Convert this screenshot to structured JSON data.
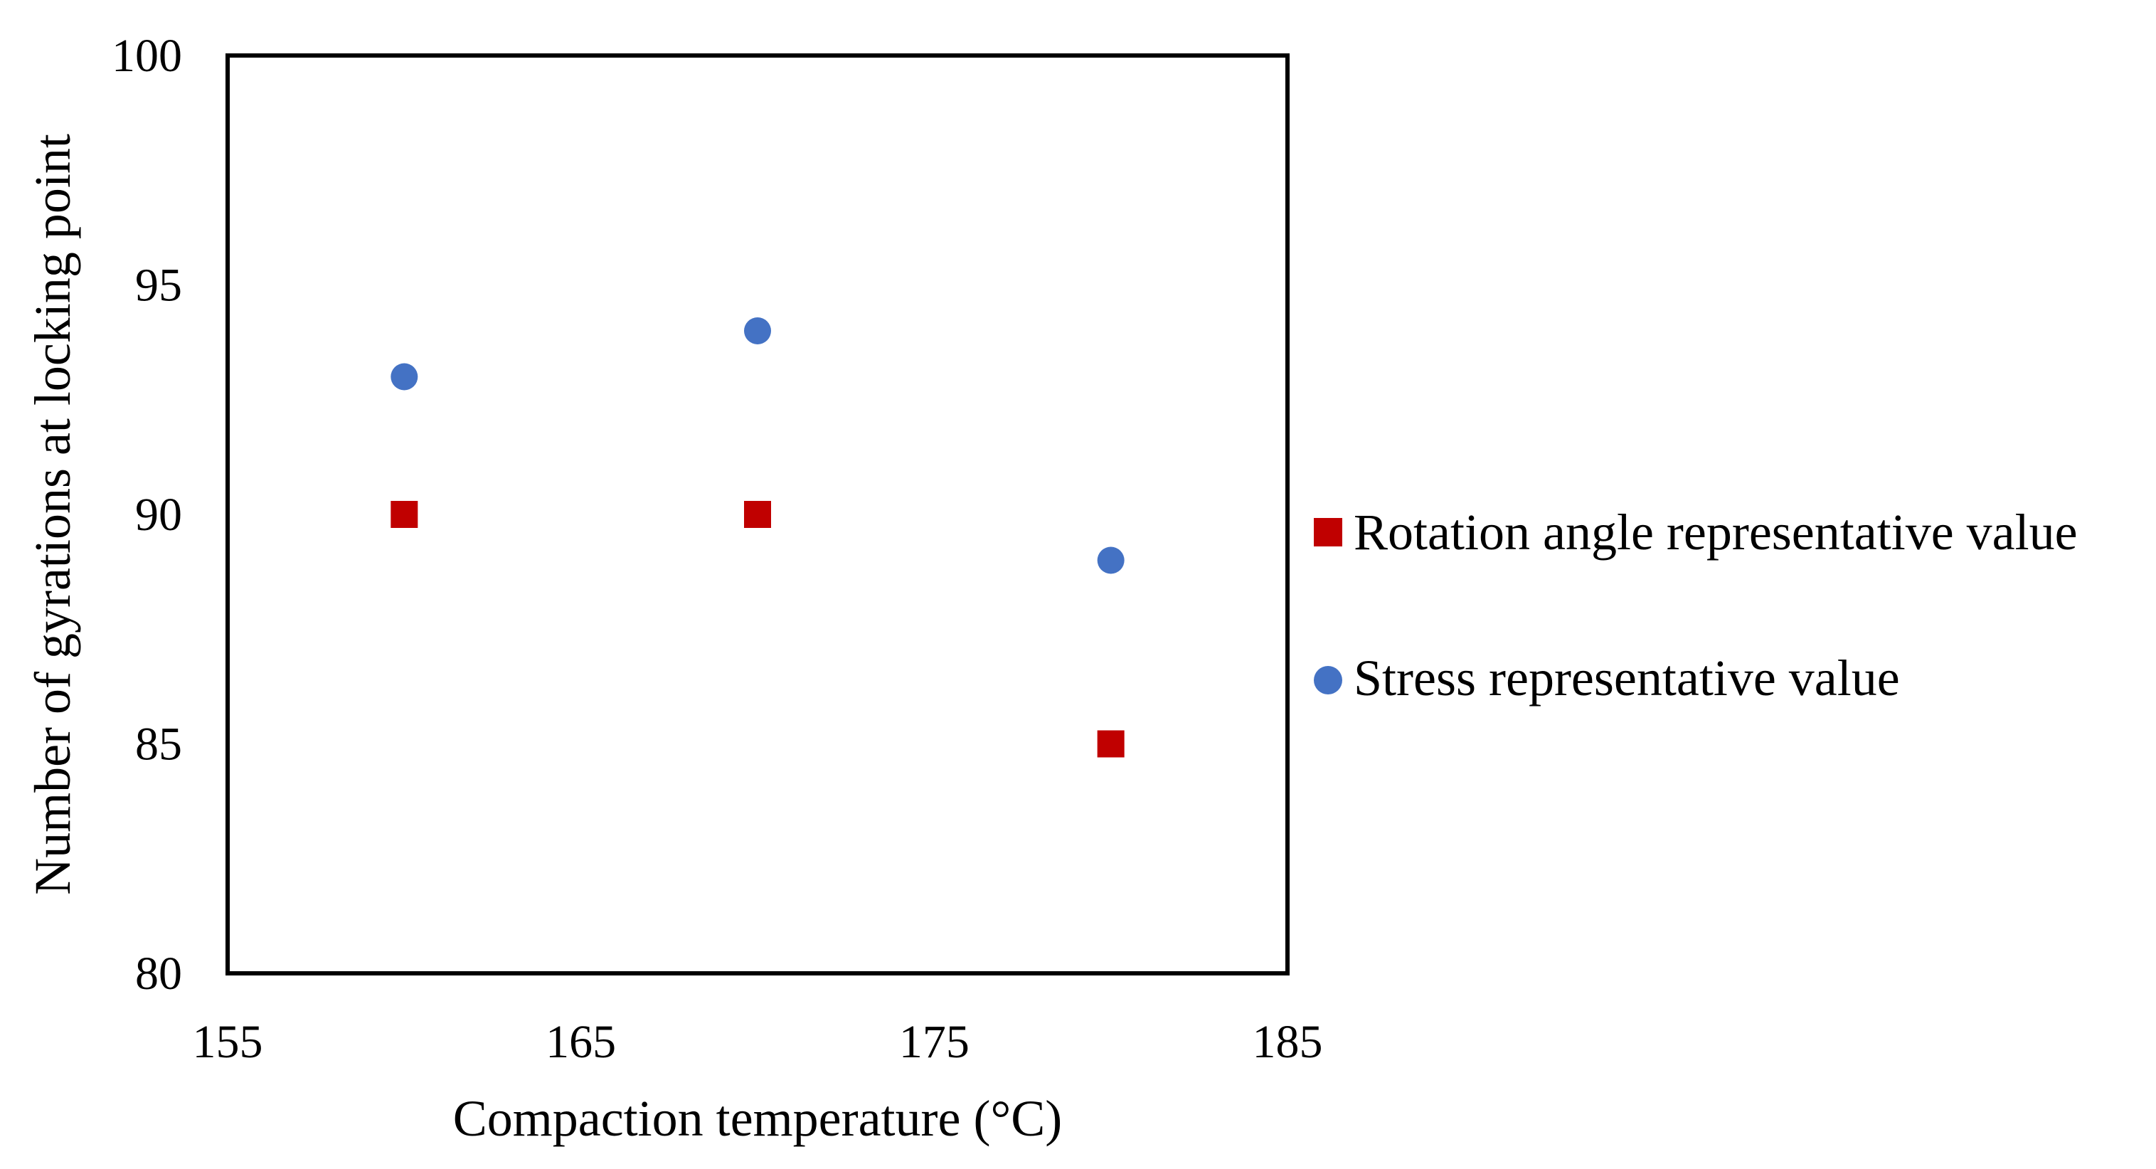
{
  "chart_data": {
    "type": "scatter",
    "title": "",
    "xlabel": "Compaction temperature (°C)",
    "ylabel": "Number of gyrations at locking point",
    "xlim": [
      155,
      185
    ],
    "ylim": [
      80,
      100
    ],
    "xticks": [
      155,
      165,
      175,
      185
    ],
    "yticks": [
      80,
      85,
      90,
      95,
      100
    ],
    "grid": false,
    "legend_position": "right",
    "series": [
      {
        "name": "Rotation angle representative value",
        "marker": "square",
        "color": "#c00000",
        "points": [
          {
            "x": 160,
            "y": 90
          },
          {
            "x": 170,
            "y": 90
          },
          {
            "x": 180,
            "y": 85
          }
        ]
      },
      {
        "name": "Stress representative value",
        "marker": "circle",
        "color": "#4472c4",
        "points": [
          {
            "x": 160,
            "y": 93
          },
          {
            "x": 170,
            "y": 94
          },
          {
            "x": 180,
            "y": 89
          }
        ]
      }
    ]
  }
}
